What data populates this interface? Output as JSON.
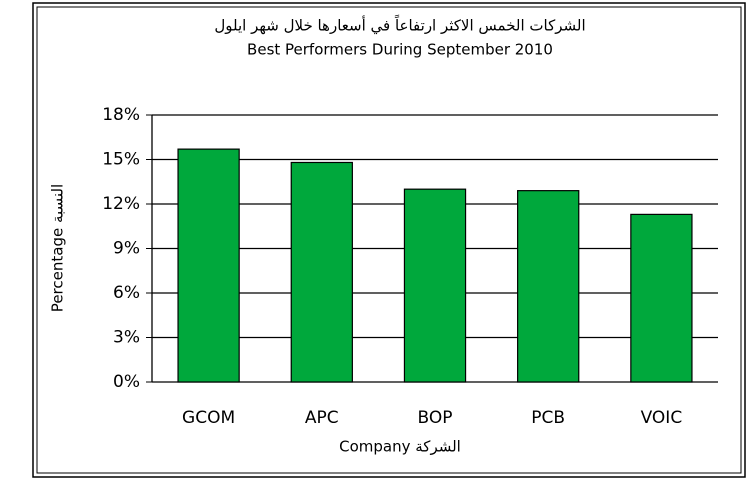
{
  "chart_data": {
    "type": "bar",
    "title": "الشركات الخمس الاكثر ارتفاعاً في أسعارها خلال شهر ايلول",
    "subtitle": "Best Performers During September 2010",
    "x_label": "Company الشركة",
    "y_label": "Percentage النسبة",
    "categories": [
      "GCOM",
      "APC",
      "BOP",
      "PCB",
      "VOIC"
    ],
    "values": [
      15.7,
      14.8,
      13.0,
      12.9,
      11.3
    ],
    "color": "#00a83c",
    "ylim": [
      0,
      18
    ],
    "yticks": [
      {
        "value": 0,
        "label": "0%"
      },
      {
        "value": 3,
        "label": "3%"
      },
      {
        "value": 6,
        "label": "6%"
      },
      {
        "value": 9,
        "label": "9%"
      },
      {
        "value": 12,
        "label": "12%"
      },
      {
        "value": 15,
        "label": "15%"
      },
      {
        "value": 18,
        "label": "18%"
      }
    ],
    "grid": true
  }
}
